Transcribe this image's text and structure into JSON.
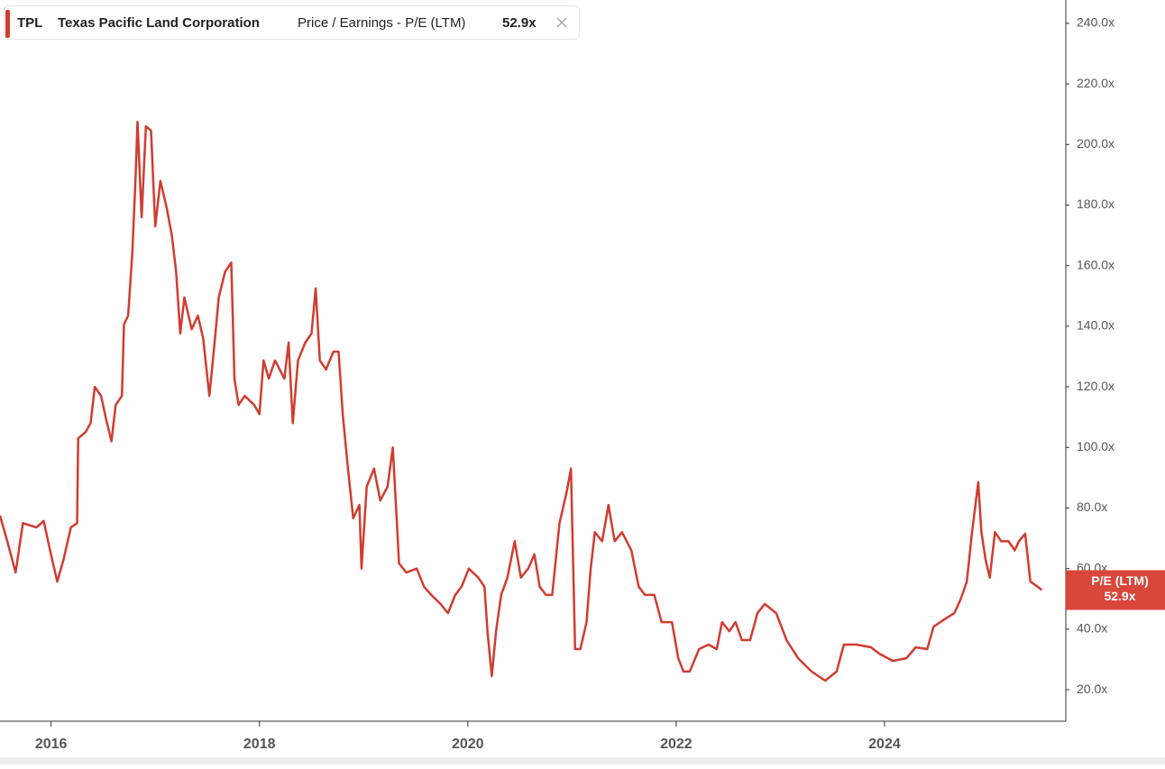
{
  "header": {
    "ticker": "TPL",
    "company": "Texas Pacific Land Corporation",
    "metric": "Price / Earnings - P/E (LTM)",
    "value_label": "52.9x"
  },
  "chart_data": {
    "type": "line",
    "x": [
      2015.51,
      2015.58,
      2015.66,
      2015.73,
      2015.86,
      2015.93,
      2015.99,
      2016.06,
      2016.12,
      2016.19,
      2016.25,
      2016.26,
      2016.33,
      2016.38,
      2016.42,
      2016.48,
      2016.53,
      2016.58,
      2016.62,
      2016.68,
      2016.7,
      2016.74,
      2016.78,
      2016.81,
      2016.83,
      2016.87,
      2016.91,
      2016.96,
      2017.0,
      2017.05,
      2017.11,
      2017.16,
      2017.2,
      2017.24,
      2017.28,
      2017.35,
      2017.41,
      2017.46,
      2017.52,
      2017.57,
      2017.61,
      2017.67,
      2017.73,
      2017.76,
      2017.8,
      2017.86,
      2017.95,
      2018.0,
      2018.04,
      2018.09,
      2018.15,
      2018.24,
      2018.28,
      2018.32,
      2018.37,
      2018.44,
      2018.5,
      2018.54,
      2018.58,
      2018.64,
      2018.71,
      2018.76,
      2018.8,
      2018.85,
      2018.9,
      2018.96,
      2018.98,
      2019.03,
      2019.1,
      2019.16,
      2019.23,
      2019.28,
      2019.32,
      2019.34,
      2019.41,
      2019.51,
      2019.58,
      2019.65,
      2019.74,
      2019.81,
      2019.88,
      2019.94,
      2020.01,
      2020.1,
      2020.16,
      2020.19,
      2020.23,
      2020.27,
      2020.32,
      2020.38,
      2020.45,
      2020.51,
      2020.58,
      2020.64,
      2020.69,
      2020.75,
      2020.81,
      2020.88,
      2020.95,
      2020.99,
      2021.03,
      2021.08,
      2021.14,
      2021.18,
      2021.22,
      2021.29,
      2021.35,
      2021.41,
      2021.48,
      2021.57,
      2021.64,
      2021.7,
      2021.79,
      2021.86,
      2021.96,
      2022.02,
      2022.07,
      2022.13,
      2022.22,
      2022.31,
      2022.39,
      2022.44,
      2022.51,
      2022.57,
      2022.63,
      2022.71,
      2022.78,
      2022.85,
      2022.96,
      2023.06,
      2023.17,
      2023.3,
      2023.43,
      2023.54,
      2023.61,
      2023.73,
      2023.87,
      2023.95,
      2024.08,
      2024.21,
      2024.3,
      2024.41,
      2024.47,
      2024.56,
      2024.67,
      2024.73,
      2024.79,
      2024.84,
      2024.9,
      2024.93,
      2024.97,
      2025.01,
      2025.06,
      2025.12,
      2025.19,
      2025.25,
      2025.29,
      2025.35,
      2025.4,
      2025.47,
      2025.51
    ],
    "series": [
      {
        "name": "P/E (LTM)",
        "color": "#d13c30",
        "values": [
          77.5,
          69,
          58.7,
          75,
          73.6,
          75.7,
          66,
          55.7,
          63,
          73.6,
          75,
          103,
          105,
          108,
          120,
          117,
          109,
          102,
          114,
          117,
          140.6,
          143.5,
          164,
          188,
          207.5,
          176,
          206,
          204.6,
          173,
          188,
          179,
          170,
          158,
          137.6,
          149.5,
          139,
          143.5,
          136,
          117,
          134.6,
          149.5,
          158,
          161,
          122.7,
          114,
          117,
          114,
          111,
          128.7,
          122.7,
          128.7,
          122.7,
          134.6,
          108,
          128.7,
          134.6,
          137.6,
          152.5,
          128.7,
          125.7,
          131.6,
          131.6,
          111,
          93,
          76.6,
          81,
          60,
          87,
          93,
          82.5,
          87,
          100,
          75,
          61.7,
          58.7,
          60,
          54,
          51.3,
          48.3,
          45.3,
          51.3,
          54,
          60,
          57,
          54,
          39,
          24.5,
          39,
          51.3,
          57,
          69,
          57,
          60,
          64.7,
          54,
          51.3,
          51.3,
          75,
          85.5,
          93,
          33.4,
          33.4,
          42.3,
          60,
          72,
          69,
          81,
          69,
          72,
          66,
          54,
          51.3,
          51.3,
          42.3,
          42.3,
          30.4,
          26,
          26,
          33.4,
          34.9,
          33.4,
          42.3,
          39.3,
          42.3,
          36.4,
          36.4,
          45.3,
          48.3,
          45.3,
          36.4,
          30.4,
          26,
          23,
          26,
          34.9,
          34.9,
          34,
          31.9,
          29.5,
          30.4,
          34,
          33.4,
          40.8,
          42.9,
          45.3,
          49.8,
          55.7,
          72,
          88.5,
          72,
          63,
          57,
          72,
          69,
          69,
          66,
          69,
          71.5,
          55.7,
          54,
          52.9
        ]
      }
    ],
    "last_value_label": "52.9x",
    "xlim": [
      2015.51,
      2025.74
    ],
    "xticks": [
      2016,
      2018,
      2020,
      2022,
      2024
    ],
    "ylim": [
      9.6,
      247.7
    ],
    "yticks": [
      {
        "value": 20,
        "label": "20.0x"
      },
      {
        "value": 40,
        "label": "40.0x"
      },
      {
        "value": 60,
        "label": "60.0x"
      },
      {
        "value": 80,
        "label": "80.0x"
      },
      {
        "value": 100,
        "label": "100.0x"
      },
      {
        "value": 120,
        "label": "120.0x"
      },
      {
        "value": 140,
        "label": "140.0x"
      },
      {
        "value": 160,
        "label": "160.0x"
      },
      {
        "value": 180,
        "label": "180.0x"
      },
      {
        "value": 200,
        "label": "200.0x"
      },
      {
        "value": 220,
        "label": "220.0x"
      },
      {
        "value": 240,
        "label": "240.0x"
      }
    ],
    "grid": false
  }
}
